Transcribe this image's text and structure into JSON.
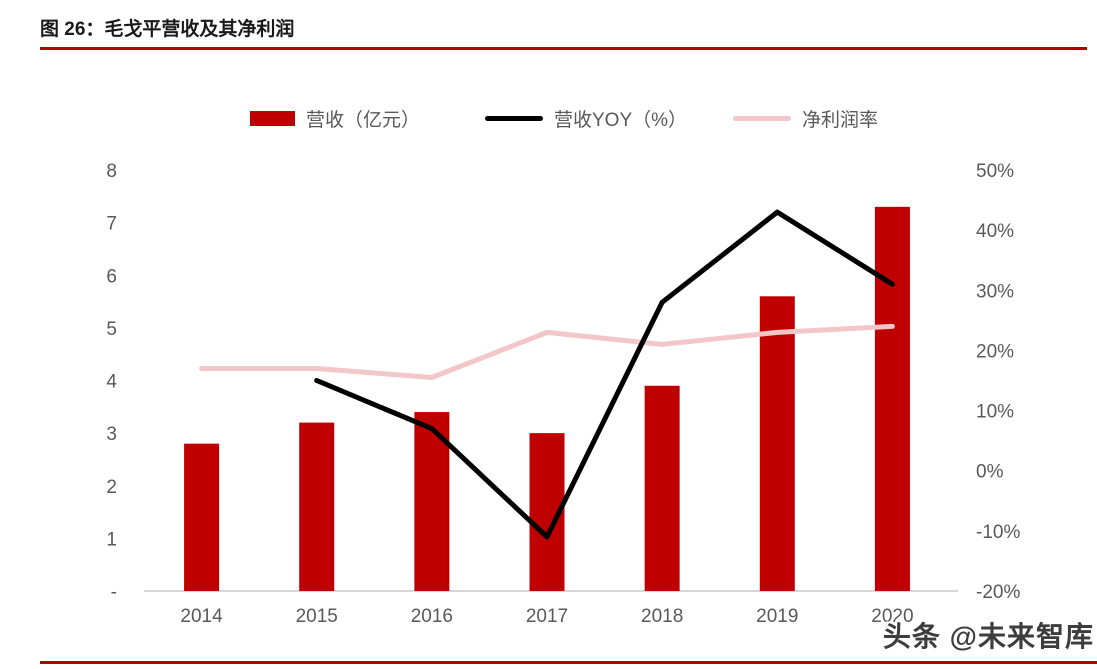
{
  "figure": {
    "title": "图 26：毛戈平营收及其净利润",
    "watermark": "头条 @未来智库"
  },
  "legend": {
    "items": [
      {
        "label": "营收（亿元）",
        "swatch": "bar",
        "color": "#c00000"
      },
      {
        "label": "营收YOY（%）",
        "swatch": "line",
        "color": "#000000"
      },
      {
        "label": "净利润率",
        "swatch": "line",
        "color": "#f3c7c7"
      }
    ]
  },
  "chart_data": {
    "type": "combo",
    "title": "图 26：毛戈平营收及其净利润",
    "categories": [
      "2014",
      "2015",
      "2016",
      "2017",
      "2018",
      "2019",
      "2020"
    ],
    "series": [
      {
        "key": "revenue",
        "name": "营收（亿元）",
        "type": "bar",
        "axis": "left",
        "color": "#c00000",
        "values": [
          2.8,
          3.2,
          3.4,
          3.0,
          3.9,
          5.6,
          7.3
        ]
      },
      {
        "key": "revenue-yoy",
        "name": "营收YOY（%）",
        "type": "line",
        "axis": "right",
        "color": "#000000",
        "values": [
          null,
          15,
          7,
          -11,
          28,
          43,
          31
        ]
      },
      {
        "key": "net-margin",
        "name": "净利润率",
        "type": "line",
        "axis": "right",
        "color": "#f3c7c7",
        "values": [
          17,
          17,
          15.5,
          23,
          21,
          23,
          24
        ]
      }
    ],
    "left_axis": {
      "min": 0,
      "max": 8,
      "tick_labels": [
        "8",
        "7",
        "6",
        "5",
        "4",
        "3",
        "2",
        "1",
        "-"
      ]
    },
    "right_axis": {
      "min": -20,
      "max": 50,
      "tick_labels": [
        "50%",
        "40%",
        "30%",
        "20%",
        "10%",
        "0%",
        "-10%",
        "-20%"
      ]
    },
    "grid": false,
    "legend_position": "top"
  },
  "colors": {
    "accent_rule": "#b30000",
    "bar": "#c00000",
    "yoy_line": "#000000",
    "margin_line": "#f3c7c7",
    "axis_text": "#595959",
    "baseline": "#d6d6d6",
    "title_text": "#1a1a1a",
    "watermark_text": "#3d3d3d"
  }
}
